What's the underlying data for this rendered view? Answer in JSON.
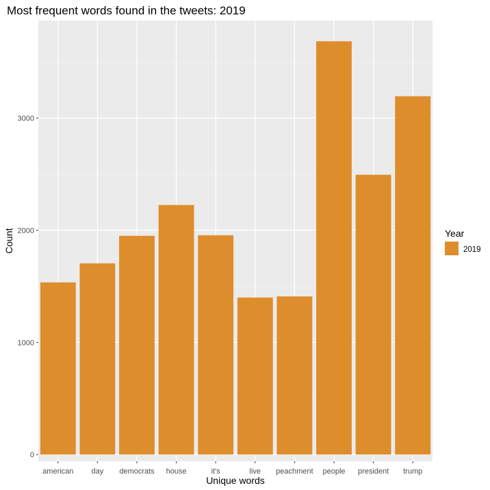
{
  "chart_data": {
    "type": "bar",
    "title": "Most frequent words found in the tweets: 2019",
    "xlabel": "Unique words",
    "ylabel": "Count",
    "categories": [
      "american",
      "day",
      "democrats",
      "house",
      "it's",
      "live",
      "peachment",
      "people",
      "president",
      "trump"
    ],
    "series": [
      {
        "name": "2019",
        "values": [
          1535,
          1705,
          1950,
          2225,
          1955,
          1400,
          1410,
          3685,
          2495,
          3195
        ],
        "color": "#de8d2c"
      }
    ],
    "ylim": [
      -60,
      3870
    ],
    "yticks": [
      0,
      1000,
      2000,
      3000
    ],
    "grid": true,
    "panel_background": "#ebebeb",
    "legend": {
      "title": "Year",
      "position": "right"
    }
  }
}
